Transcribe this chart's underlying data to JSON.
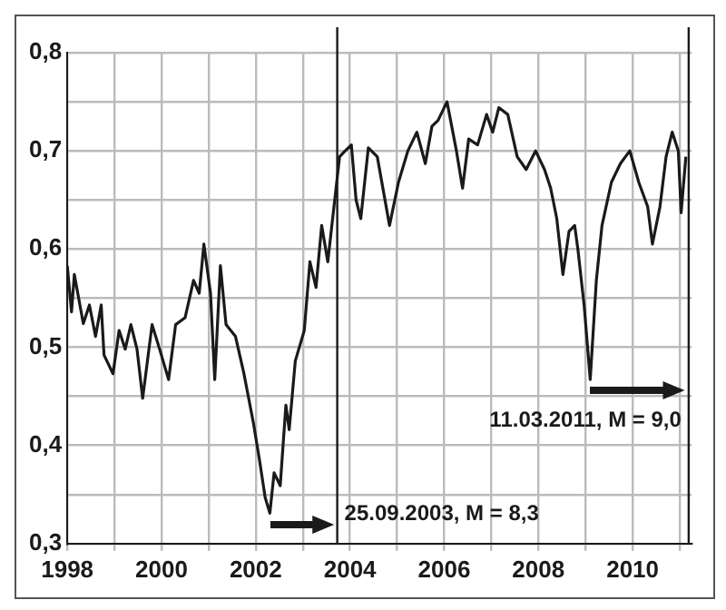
{
  "chart_data": {
    "type": "line",
    "x": [
      1998.0,
      1998.09,
      1998.15,
      1998.34,
      1998.47,
      1998.6,
      1998.72,
      1998.78,
      1998.97,
      1999.1,
      1999.23,
      1999.35,
      1999.48,
      1999.6,
      1999.8,
      1999.96,
      2000.15,
      2000.3,
      2000.5,
      2000.68,
      2000.8,
      2000.9,
      2001.04,
      2001.13,
      2001.25,
      2001.37,
      2001.57,
      2001.75,
      2001.95,
      2002.08,
      2002.2,
      2002.3,
      2002.39,
      2002.52,
      2002.64,
      2002.71,
      2002.84,
      2003.03,
      2003.15,
      2003.28,
      2003.4,
      2003.53,
      2003.66,
      2003.78,
      2003.9,
      2004.03,
      2004.13,
      2004.23,
      2004.39,
      2004.58,
      2004.84,
      2005.03,
      2005.23,
      2005.42,
      2005.6,
      2005.74,
      2005.87,
      2006.06,
      2006.26,
      2006.39,
      2006.52,
      2006.71,
      2006.9,
      2007.03,
      2007.16,
      2007.35,
      2007.55,
      2007.74,
      2007.94,
      2008.13,
      2008.26,
      2008.39,
      2008.52,
      2008.65,
      2008.77,
      2008.84,
      2008.97,
      2009.1,
      2009.23,
      2009.35,
      2009.55,
      2009.74,
      2009.94,
      2010.13,
      2010.32,
      2010.42,
      2010.58,
      2010.71,
      2010.84,
      2010.97,
      2011.03,
      2011.13
    ],
    "series": [
      {
        "color": "#1a1a1a",
        "values": [
          0.583,
          0.536,
          0.574,
          0.524,
          0.543,
          0.511,
          0.543,
          0.492,
          0.473,
          0.517,
          0.498,
          0.523,
          0.498,
          0.448,
          0.523,
          0.498,
          0.467,
          0.523,
          0.53,
          0.568,
          0.555,
          0.605,
          0.555,
          0.467,
          0.583,
          0.523,
          0.511,
          0.473,
          0.423,
          0.385,
          0.347,
          0.331,
          0.372,
          0.359,
          0.441,
          0.416,
          0.486,
          0.517,
          0.587,
          0.561,
          0.624,
          0.587,
          0.643,
          0.694,
          0.7,
          0.706,
          0.65,
          0.631,
          0.703,
          0.694,
          0.624,
          0.668,
          0.7,
          0.719,
          0.687,
          0.725,
          0.731,
          0.75,
          0.7,
          0.662,
          0.712,
          0.706,
          0.737,
          0.719,
          0.744,
          0.737,
          0.694,
          0.681,
          0.7,
          0.681,
          0.662,
          0.631,
          0.574,
          0.618,
          0.624,
          0.599,
          0.543,
          0.467,
          0.568,
          0.624,
          0.668,
          0.687,
          0.7,
          0.668,
          0.643,
          0.605,
          0.643,
          0.694,
          0.719,
          0.7,
          0.637,
          0.694
        ]
      }
    ],
    "xlim": [
      1998,
      2011.25
    ],
    "xticks": [
      1998,
      {
        "value": 1999,
        "label": null
      },
      2000,
      {
        "value": 2001,
        "label": null
      },
      2002,
      {
        "value": 2003,
        "label": null
      },
      2004,
      {
        "value": 2005,
        "label": null
      },
      2006,
      {
        "value": 2007,
        "label": null
      },
      2008,
      {
        "value": 2009,
        "label": null
      },
      2010,
      {
        "value": 2011,
        "label": null
      }
    ],
    "ylim": [
      0.3,
      0.8
    ],
    "yticks": [
      {
        "value": 0.3,
        "label": "0,3"
      },
      {
        "value": 0.35,
        "label": null
      },
      {
        "value": 0.4,
        "label": "0,4"
      },
      {
        "value": 0.45,
        "label": null
      },
      {
        "value": 0.5,
        "label": "0,5"
      },
      {
        "value": 0.55,
        "label": null
      },
      {
        "value": 0.6,
        "label": "0,6"
      },
      {
        "value": 0.65,
        "label": null
      },
      {
        "value": 0.7,
        "label": "0,7"
      },
      {
        "value": 0.75,
        "label": null
      },
      {
        "value": 0.8,
        "label": "0,8"
      }
    ],
    "ref_lines": [
      {
        "axis": "x",
        "value": 2003.73,
        "color": "#1a1a1a"
      },
      {
        "axis": "x",
        "value": 2011.19,
        "color": "#1a1a1a"
      }
    ],
    "annotations": [
      "25.09.2003, M = 8,3",
      "11.03.2011, M = 9,0"
    ],
    "grid": true,
    "legend": false,
    "marker": "none",
    "line_style": "solid"
  }
}
